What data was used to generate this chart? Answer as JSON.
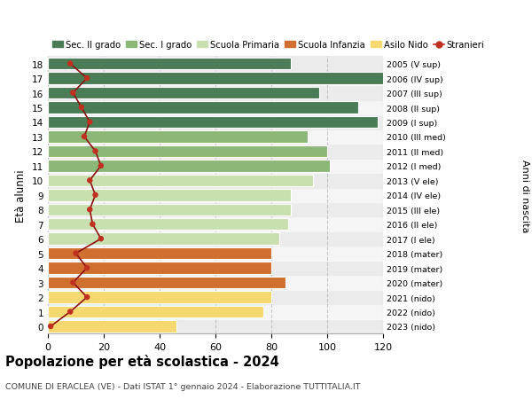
{
  "ages": [
    0,
    1,
    2,
    3,
    4,
    5,
    6,
    7,
    8,
    9,
    10,
    11,
    12,
    13,
    14,
    15,
    16,
    17,
    18
  ],
  "bar_values": [
    46,
    77,
    80,
    85,
    80,
    80,
    83,
    86,
    87,
    87,
    95,
    101,
    100,
    93,
    118,
    111,
    97,
    125,
    87
  ],
  "stranieri": [
    1,
    8,
    14,
    9,
    14,
    10,
    19,
    16,
    15,
    17,
    15,
    19,
    17,
    13,
    15,
    12,
    9,
    14,
    8
  ],
  "right_labels": [
    "2023 (nido)",
    "2022 (nido)",
    "2021 (nido)",
    "2020 (mater)",
    "2019 (mater)",
    "2018 (mater)",
    "2017 (I ele)",
    "2016 (II ele)",
    "2015 (III ele)",
    "2014 (IV ele)",
    "2013 (V ele)",
    "2012 (I med)",
    "2011 (II med)",
    "2010 (III med)",
    "2009 (I sup)",
    "2008 (II sup)",
    "2007 (III sup)",
    "2006 (IV sup)",
    "2005 (V sup)"
  ],
  "colors": {
    "sec2": "#4a7c55",
    "sec1": "#8cb877",
    "primaria": "#c8e0b0",
    "infanzia": "#d07030",
    "nido": "#f5d870",
    "stranieri_line": "#8b1010",
    "stranieri_dot": "#c03020"
  },
  "bar_colors": [
    "#f5d870",
    "#f5d870",
    "#f5d870",
    "#d07030",
    "#d07030",
    "#d07030",
    "#c8e0b0",
    "#c8e0b0",
    "#c8e0b0",
    "#c8e0b0",
    "#c8e0b0",
    "#8cb877",
    "#8cb877",
    "#8cb877",
    "#4a7c55",
    "#4a7c55",
    "#4a7c55",
    "#4a7c55",
    "#4a7c55"
  ],
  "title": "Popolazione per età scolastica - 2024",
  "subtitle": "COMUNE DI ERACLEA (VE) - Dati ISTAT 1° gennaio 2024 - Elaborazione TUTTITALIA.IT",
  "ylabel": "Età alunni",
  "right_ylabel": "Anni di nascita",
  "xlim": [
    0,
    120
  ],
  "legend_labels": [
    "Sec. II grado",
    "Sec. I grado",
    "Scuola Primaria",
    "Scuola Infanzia",
    "Asilo Nido",
    "Stranieri"
  ]
}
